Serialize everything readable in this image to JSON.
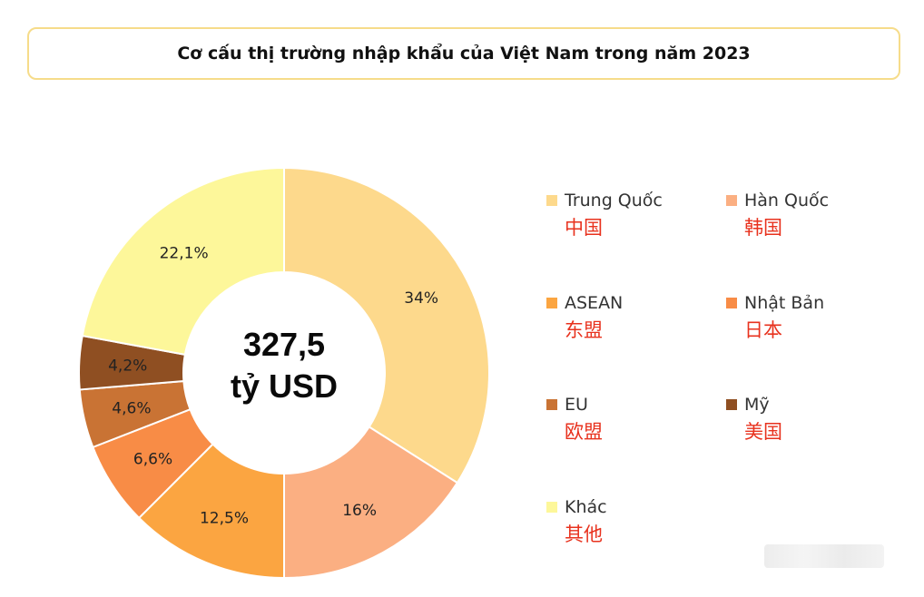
{
  "title": "Cơ cấu thị trường nhập khẩu của Việt Nam trong năm 2023",
  "center": {
    "line1": "327,5",
    "line2": "tỷ USD"
  },
  "chart_data": {
    "type": "pie",
    "donut": true,
    "title": "Cơ cấu thị trường nhập khẩu của Việt Nam trong năm 2023",
    "center_text": "327,5 tỷ USD",
    "series": [
      {
        "name": "Trung Quốc",
        "name_cn": "中国",
        "value": 34,
        "label": "34%",
        "color": "#fdd98c"
      },
      {
        "name": "Hàn Quốc",
        "name_cn": "韩国",
        "value": 16,
        "label": "16%",
        "color": "#fbaf82"
      },
      {
        "name": "ASEAN",
        "name_cn": "东盟",
        "value": 12.5,
        "label": "12,5%",
        "color": "#fba541"
      },
      {
        "name": "Nhật Bản",
        "name_cn": "日本",
        "value": 6.6,
        "label": "6,6%",
        "color": "#f88c46"
      },
      {
        "name": "EU",
        "name_cn": "欧盟",
        "value": 4.6,
        "label": "4,6%",
        "color": "#c97334"
      },
      {
        "name": "Mỹ",
        "name_cn": "美国",
        "value": 4.2,
        "label": "4,2%",
        "color": "#8f4f22"
      },
      {
        "name": "Khác",
        "name_cn": "其他",
        "value": 22.1,
        "label": "22,1%",
        "color": "#fdf79a"
      }
    ],
    "legend_position": "right"
  }
}
